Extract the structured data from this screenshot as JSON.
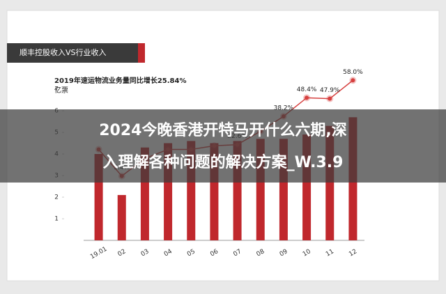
{
  "chart_data": {
    "type": "bar",
    "title": "顺丰控股收入VS行业收入",
    "subtitle": "2019年速运物流业务量同比增长25.84%",
    "y_axis_label": "亿票",
    "categories": [
      "19.01",
      "02",
      "03",
      "04",
      "05",
      "06",
      "07",
      "08",
      "09",
      "10",
      "11",
      "12"
    ],
    "values": [
      4.0,
      2.1,
      4.3,
      4.5,
      4.6,
      4.5,
      4.6,
      4.7,
      4.7,
      4.9,
      5.3,
      5.7
    ],
    "color": "#c0282d",
    "line": {
      "values": [
        20,
        5.4,
        15,
        20,
        20,
        22,
        22.6,
        30,
        38.2,
        48.4,
        47.9,
        58.0
      ],
      "value_labels": [
        null,
        "5.4%",
        null,
        null,
        null,
        null,
        "22.6%",
        null,
        "38.2%",
        "48.4%",
        "47.9%",
        "58.0%"
      ],
      "color": "#d6403f",
      "axis": "y2"
    },
    "ylim": [
      0,
      8
    ],
    "yticks": [
      1,
      2,
      3,
      4,
      5,
      6,
      7
    ],
    "y2lim": [
      -30,
      65
    ],
    "overlay_text": [
      "2024今晚香港开特马开什么六期,深",
      "入理解各种问题的解决方案_W.3.9"
    ]
  }
}
